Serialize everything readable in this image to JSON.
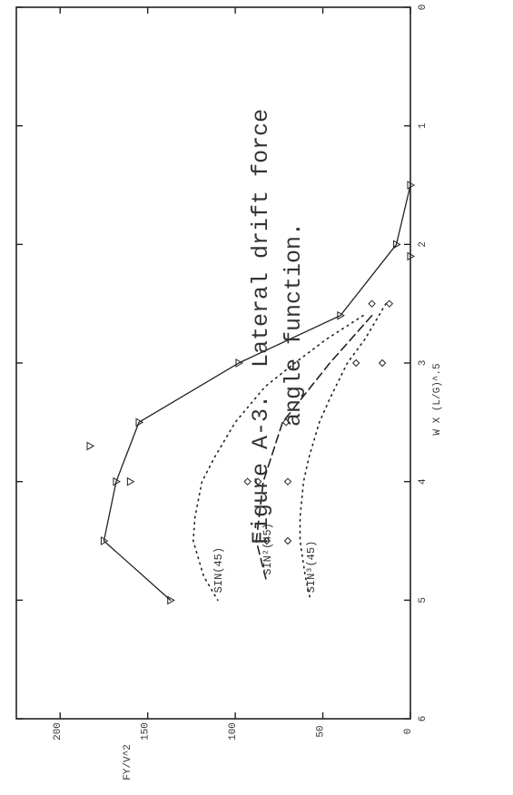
{
  "chart_data": {
    "type": "line",
    "title": "",
    "xlabel": "W X (L/G)^.5",
    "ylabel": "FY/V^2",
    "xlim": [
      0,
      6
    ],
    "ylim": [
      0,
      225
    ],
    "x_ticks": [
      "0",
      "1",
      "2",
      "3",
      "4",
      "5",
      "6"
    ],
    "y_ticks": [
      "0",
      "50",
      "100",
      "150",
      "200"
    ],
    "series": [
      {
        "style": "solid",
        "marker": "triangle",
        "x": [
          1.5,
          2.0,
          2.6,
          3.0,
          3.5,
          4.0,
          4.5,
          5.0
        ],
        "y": [
          0,
          8,
          40,
          98,
          155,
          168,
          175,
          137
        ]
      },
      {
        "name": "SIN(45)",
        "style": "dotted",
        "x": [
          2.6,
          2.8,
          3.0,
          3.2,
          3.5,
          3.8,
          4.0,
          4.3,
          4.5,
          4.8,
          5.0
        ],
        "y": [
          27,
          48,
          66,
          83,
          100,
          112,
          119,
          123,
          124,
          118,
          110
        ]
      },
      {
        "name": "SIN²(45)",
        "style": "dashed",
        "x": [
          2.6,
          3.0,
          3.5,
          4.0,
          4.5,
          4.85
        ],
        "y": [
          22,
          46,
          73,
          84,
          88,
          82
        ]
      },
      {
        "name": "SIN³(45)",
        "style": "dotted",
        "x": [
          2.5,
          2.8,
          3.0,
          3.3,
          3.5,
          3.8,
          4.0,
          4.3,
          4.5,
          4.8,
          5.0
        ],
        "y": [
          14,
          26,
          36,
          46,
          52,
          58,
          61,
          63,
          63,
          60,
          57
        ]
      }
    ],
    "scatter": [
      {
        "marker": "triangle",
        "x": [
          2.1,
          3.7,
          4.0
        ],
        "y": [
          0,
          183,
          160
        ]
      },
      {
        "marker": "diamond",
        "x": [
          2.5,
          2.5,
          3.0,
          3.0,
          3.5,
          4.0,
          4.0,
          4.0,
          4.5,
          4.5
        ],
        "y": [
          12,
          22,
          16,
          31,
          71,
          93,
          87,
          70,
          82,
          70
        ]
      }
    ],
    "grid": false
  },
  "caption": {
    "line1": "Figure A-3.  Lateral drift force",
    "line2": "angle function."
  }
}
